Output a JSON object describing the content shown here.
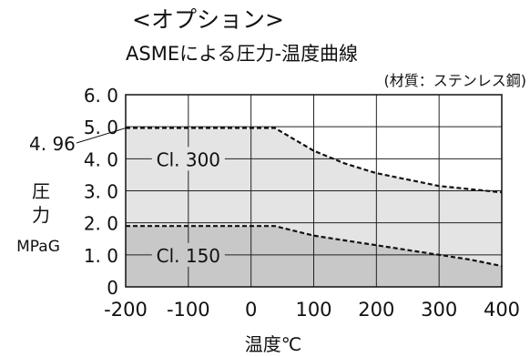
{
  "heading": "<オプション>",
  "chart_data": {
    "type": "area",
    "title": "ASMEによる圧力-温度曲線",
    "subtitle": "(材質：ステンレス鋼)",
    "xlabel": "温度℃",
    "ylabel_lines": [
      "圧",
      "力",
      "MPaG"
    ],
    "xlim": [
      -200,
      400
    ],
    "ylim": [
      0,
      6.0
    ],
    "x_ticks": [
      "-200",
      "-100",
      "0",
      "100",
      "200",
      "300",
      "400"
    ],
    "y_ticks": [
      "0",
      "1. 0",
      "2. 0",
      "3. 0",
      "4. 0",
      "5. 0",
      "6. 0"
    ],
    "grid": true,
    "series": [
      {
        "name": "Cl. 300",
        "fill": "#e4e4e4",
        "x": [
          -200,
          38,
          100,
          150,
          200,
          250,
          300,
          350,
          400
        ],
        "y": [
          4.96,
          4.96,
          4.25,
          3.85,
          3.55,
          3.35,
          3.15,
          3.05,
          2.95
        ]
      },
      {
        "name": "Cl. 150",
        "fill": "#c8c8c8",
        "x": [
          -200,
          38,
          100,
          150,
          200,
          250,
          300,
          350,
          400
        ],
        "y": [
          1.9,
          1.9,
          1.6,
          1.45,
          1.3,
          1.15,
          1.0,
          0.85,
          0.65
        ]
      }
    ],
    "annotations": [
      {
        "text": "4. 96",
        "x": -200,
        "y": 4.96
      }
    ]
  }
}
